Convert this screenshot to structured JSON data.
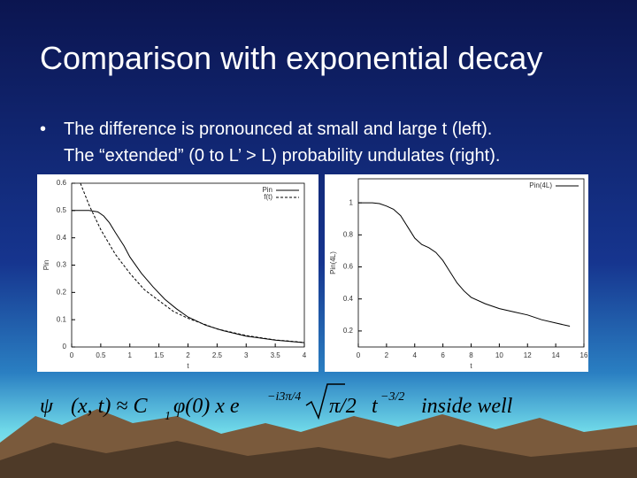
{
  "title": "Comparison with exponential decay",
  "bullets": [
    "The difference is pronounced at small and large t (left).",
    "The “extended” (0 to L’ > L) probability undulates (right)."
  ],
  "formula": {
    "lhs": "ψ",
    "args": "(x, t) ≈ C",
    "sub": "1",
    "mid": "φ(0) x e",
    "sup1": "−i3π/4",
    "sqrt": "π/2",
    "t": "t",
    "sup2": "−3/2",
    "tail": "inside well"
  },
  "chart_data": [
    {
      "type": "line",
      "xlabel": "t",
      "ylabel": "Pin",
      "xlim": [
        0,
        4
      ],
      "ylim": [
        0,
        0.6
      ],
      "xticks": [
        0,
        0.5,
        1,
        1.5,
        2,
        2.5,
        3,
        3.5,
        4
      ],
      "yticks": [
        0,
        0.1,
        0.2,
        0.3,
        0.4,
        0.5,
        0.6
      ],
      "legend": "top-right",
      "series": [
        {
          "name": "Pin",
          "color": "#000000",
          "dashed": false,
          "x": [
            0,
            0.3,
            0.45,
            0.55,
            0.65,
            0.75,
            0.9,
            1.0,
            1.2,
            1.4,
            1.6,
            1.8,
            2.0,
            2.3,
            2.6,
            3.0,
            3.5,
            4.0
          ],
          "values": [
            0.5,
            0.5,
            0.495,
            0.48,
            0.455,
            0.42,
            0.37,
            0.33,
            0.27,
            0.22,
            0.175,
            0.14,
            0.11,
            0.08,
            0.06,
            0.04,
            0.025,
            0.016
          ]
        },
        {
          "name": "f(t)",
          "color": "#000000",
          "dashed": true,
          "x": [
            0.15,
            0.3,
            0.5,
            0.75,
            1.0,
            1.25,
            1.5,
            1.75,
            2.0,
            2.5,
            3.0,
            3.5,
            4.0
          ],
          "values": [
            0.6,
            0.52,
            0.43,
            0.34,
            0.27,
            0.21,
            0.17,
            0.13,
            0.105,
            0.066,
            0.042,
            0.026,
            0.017
          ]
        }
      ]
    },
    {
      "type": "line",
      "xlabel": "t",
      "ylabel": "Pin(4L)",
      "xlim": [
        0,
        16
      ],
      "ylim": [
        0.1,
        1.15
      ],
      "xticks": [
        0,
        2,
        4,
        6,
        8,
        10,
        12,
        14,
        16
      ],
      "yticks": [
        0.2,
        0.4,
        0.6,
        0.8,
        1
      ],
      "legend": "top-right",
      "series": [
        {
          "name": "Pin(4L)",
          "color": "#000000",
          "dashed": false,
          "x": [
            0,
            1,
            1.5,
            2,
            2.5,
            3,
            3.5,
            4,
            4.5,
            5,
            5.5,
            6,
            6.5,
            7,
            7.5,
            8,
            9,
            10,
            11,
            12,
            13,
            14,
            15
          ],
          "values": [
            1.0,
            1.0,
            0.995,
            0.98,
            0.96,
            0.92,
            0.85,
            0.78,
            0.74,
            0.72,
            0.69,
            0.64,
            0.57,
            0.5,
            0.45,
            0.41,
            0.37,
            0.34,
            0.32,
            0.3,
            0.27,
            0.25,
            0.23
          ]
        }
      ]
    }
  ]
}
